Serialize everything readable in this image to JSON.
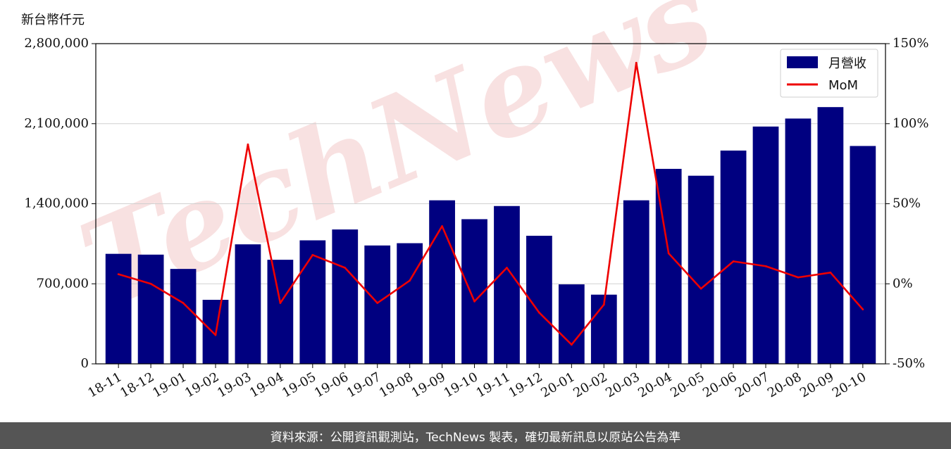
{
  "unit_label": "新台幣仟元",
  "footer_text": "資料來源：公開資訊觀測站，TechNews 製表，確切最新訊息以原站公告為準",
  "watermark": "TechNews",
  "colors": {
    "bar": "#000080",
    "line": "#ee0000",
    "grid": "#d0d0d0",
    "footer_bg": "#555555"
  },
  "chart_data": {
    "type": "bar",
    "categories": [
      "18-11",
      "18-12",
      "19-01",
      "19-02",
      "19-03",
      "19-04",
      "19-05",
      "19-06",
      "19-07",
      "19-08",
      "19-09",
      "19-10",
      "19-11",
      "19-12",
      "20-01",
      "20-02",
      "20-03",
      "20-04",
      "20-05",
      "20-06",
      "20-07",
      "20-08",
      "20-09",
      "20-10"
    ],
    "series": [
      {
        "name": "月營收",
        "type": "bar",
        "axis": "left",
        "values": [
          962000,
          955000,
          830000,
          560000,
          1045000,
          910000,
          1080000,
          1175000,
          1035000,
          1055000,
          1430000,
          1265000,
          1380000,
          1120000,
          695000,
          605000,
          1430000,
          1705000,
          1645000,
          1865000,
          2075000,
          2145000,
          2245000,
          1905000
        ]
      },
      {
        "name": "MoM",
        "type": "line",
        "axis": "right",
        "values": [
          6,
          0,
          -12,
          -32,
          87,
          -12,
          18,
          10,
          -12,
          2,
          36,
          -11,
          10,
          -18,
          -38,
          -13,
          138,
          19,
          -3,
          14,
          11,
          4,
          7,
          -16
        ]
      }
    ],
    "y_left": {
      "ylim": [
        0,
        2800000
      ],
      "ticks": [
        "0",
        "700,000",
        "1,400,000",
        "2,100,000",
        "2,800,000"
      ],
      "tick_values": [
        0,
        700000,
        1400000,
        2100000,
        2800000
      ]
    },
    "y_right": {
      "ylim": [
        -50,
        150
      ],
      "ticks": [
        "-50%",
        "0%",
        "50%",
        "100%",
        "150%"
      ],
      "tick_values": [
        -50,
        0,
        50,
        100,
        150
      ]
    },
    "legend_position": "top-right",
    "grid": "horizontal"
  }
}
